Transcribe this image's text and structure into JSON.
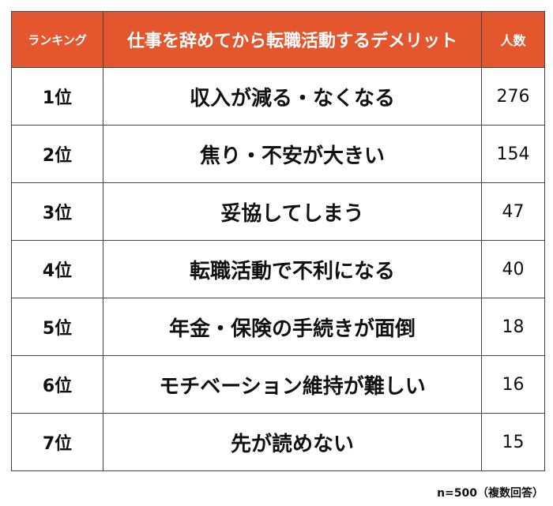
{
  "header": {
    "rank_label": "ランキング",
    "item_label": "仕事を辞めてから転職活動するデメリット",
    "count_label": "人数"
  },
  "rows": [
    {
      "rank": "1位",
      "item": "収入が減る・なくなる",
      "count": "276"
    },
    {
      "rank": "2位",
      "item": "焦り・不安が大きい",
      "count": "154"
    },
    {
      "rank": "3位",
      "item": "妥協してしまう",
      "count": "47"
    },
    {
      "rank": "4位",
      "item": "転職活動で不利になる",
      "count": "40"
    },
    {
      "rank": "5位",
      "item": "年金・保険の手続きが面倒",
      "count": "18"
    },
    {
      "rank": "6位",
      "item": "モチベーション維持が難しい",
      "count": "16"
    },
    {
      "rank": "7位",
      "item": "先が読めない",
      "count": "15"
    }
  ],
  "footnote": "n=500（複数回答）",
  "colors": {
    "header_bg": "#e3562e",
    "header_text": "#ffffff",
    "border": "#444444"
  }
}
